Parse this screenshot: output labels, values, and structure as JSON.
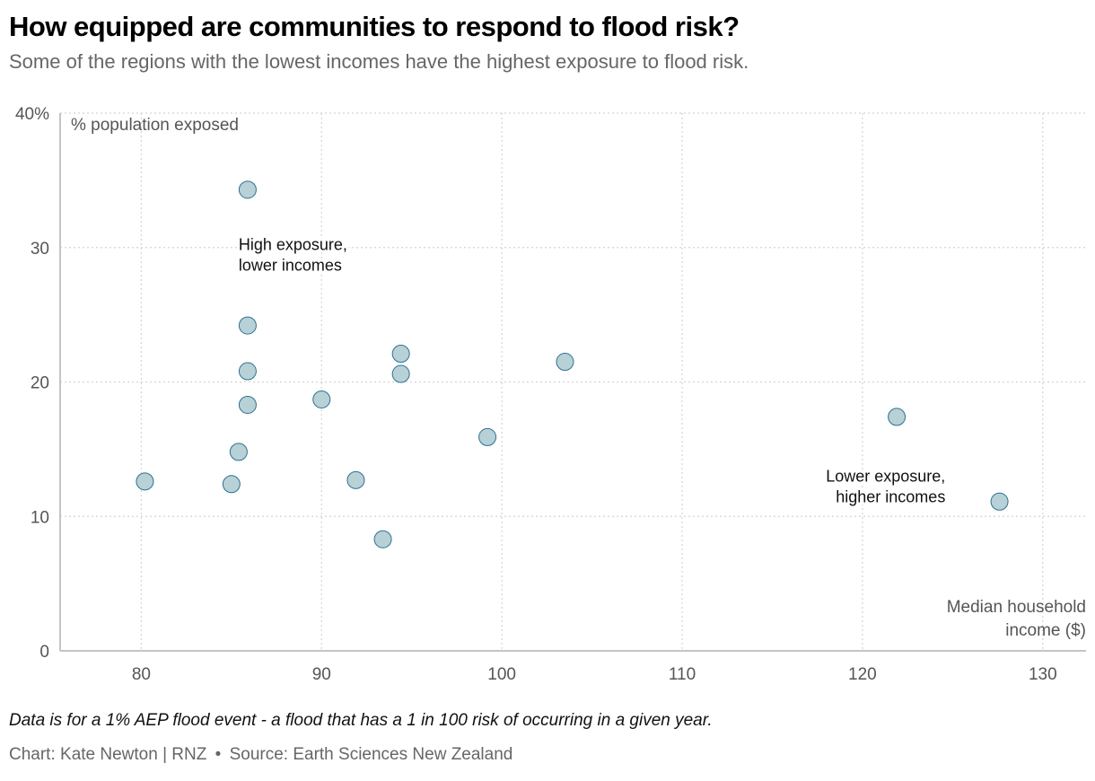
{
  "header": {
    "title": "How equipped are communities to respond to flood risk?",
    "subtitle": "Some of the regions with the lowest incomes have the highest exposure to flood risk."
  },
  "footer": {
    "note": "Data is for a 1% AEP flood event - a flood that has a 1 in 100 risk of occurring in a given year.",
    "credit": "Chart: Kate Newton | RNZ",
    "separator": "•",
    "source": "Source: Earth Sciences New Zealand"
  },
  "colors": {
    "point_fill": "#b7d1d7",
    "point_stroke": "#2e7190",
    "grid": "#d4d4d4",
    "axis": "#c4c4c4"
  },
  "chart_data": {
    "type": "scatter",
    "title": "How equipped are communities to respond to flood risk?",
    "xlabel": "Median household income ($)",
    "xlabel_lines": [
      "Median household",
      "income ($)"
    ],
    "ylabel": "% population exposed",
    "xlim": [
      75.5,
      132.4
    ],
    "ylim": [
      0,
      40
    ],
    "xticks": [
      80,
      90,
      100,
      110,
      120,
      130
    ],
    "xtick_labels": [
      "80",
      "90",
      "100",
      "110",
      "120",
      "130"
    ],
    "yticks": [
      0,
      10,
      20,
      30,
      40
    ],
    "ytick_labels": [
      "0",
      "10",
      "20",
      "30",
      "40%"
    ],
    "grid": true,
    "points": [
      {
        "x": 85.9,
        "y": 34.3
      },
      {
        "x": 85.9,
        "y": 24.2
      },
      {
        "x": 85.9,
        "y": 20.8
      },
      {
        "x": 85.9,
        "y": 18.3
      },
      {
        "x": 90.0,
        "y": 18.7
      },
      {
        "x": 85.4,
        "y": 14.8
      },
      {
        "x": 80.2,
        "y": 12.6
      },
      {
        "x": 85.0,
        "y": 12.4
      },
      {
        "x": 94.4,
        "y": 22.1
      },
      {
        "x": 94.4,
        "y": 20.6
      },
      {
        "x": 103.5,
        "y": 21.5
      },
      {
        "x": 99.2,
        "y": 15.9
      },
      {
        "x": 91.9,
        "y": 12.7
      },
      {
        "x": 93.4,
        "y": 8.3
      },
      {
        "x": 121.9,
        "y": 17.4
      },
      {
        "x": 127.6,
        "y": 11.1
      }
    ],
    "annotations": [
      {
        "lines": [
          "High exposure,",
          "lower incomes"
        ],
        "x": 85.4,
        "y": 29.8,
        "align": "left"
      },
      {
        "lines": [
          "Lower exposure,",
          "higher incomes"
        ],
        "x": 124.6,
        "y": 12.6,
        "align": "right"
      }
    ]
  }
}
